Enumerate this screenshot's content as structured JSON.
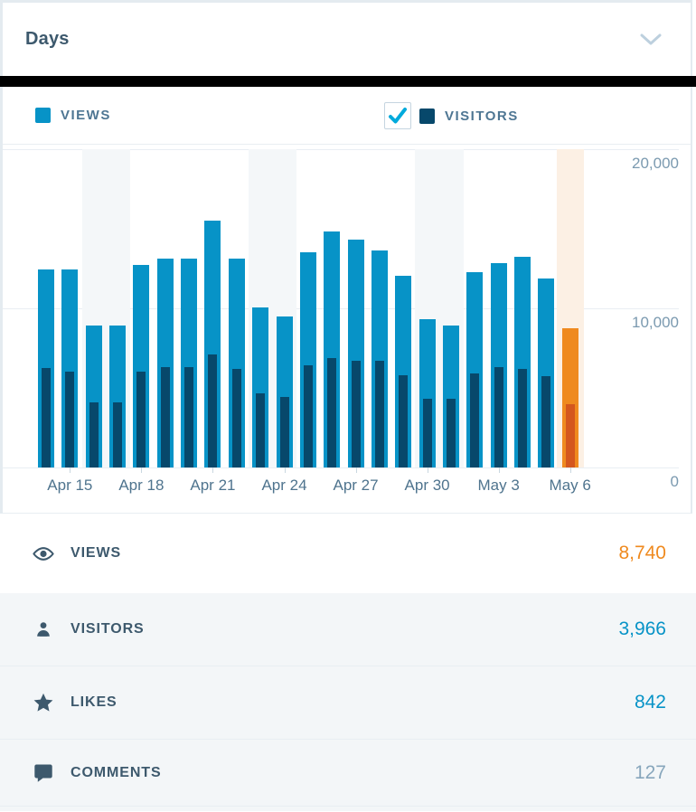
{
  "header": {
    "title": "Days"
  },
  "legend": {
    "views": {
      "label": "VIEWS",
      "color": "#0793c7"
    },
    "visitors": {
      "label": "VISITORS",
      "color": "#07486b",
      "checkbox_checked": true
    }
  },
  "chart_data": {
    "type": "bar",
    "title": "Days",
    "categories": [
      "Apr 14",
      "Apr 15",
      "Apr 16",
      "Apr 17",
      "Apr 18",
      "Apr 19",
      "Apr 20",
      "Apr 21",
      "Apr 22",
      "Apr 23",
      "Apr 24",
      "Apr 25",
      "Apr 26",
      "Apr 27",
      "Apr 28",
      "Apr 29",
      "Apr 30",
      "May 1",
      "May 2",
      "May 3",
      "May 4",
      "May 5",
      "May 6"
    ],
    "series": [
      {
        "name": "Views",
        "color": "#0793c7",
        "values": [
          12450,
          12450,
          8900,
          8900,
          12700,
          13100,
          13100,
          15500,
          13100,
          10050,
          9500,
          13550,
          14850,
          14300,
          13650,
          12050,
          9300,
          8900,
          12300,
          12850,
          13250,
          11900,
          8740
        ]
      },
      {
        "name": "Visitors",
        "color": "#07486b",
        "values": [
          6250,
          6000,
          4100,
          4100,
          6050,
          6280,
          6330,
          7130,
          6190,
          4670,
          4420,
          6410,
          6890,
          6700,
          6700,
          5800,
          4290,
          4290,
          5900,
          6280,
          6190,
          5750,
          3966
        ]
      }
    ],
    "selected_index": 22,
    "selected_category": "May 6",
    "selected_colors": {
      "views": "#ef8a1f",
      "visitors": "#d4571e"
    },
    "selected_band_color": "#fcf0e4",
    "weekend_shaded_indices": [
      2,
      3,
      9,
      10,
      16,
      17
    ],
    "weekend_band_color": "#f4f7f9",
    "x_tick_indices": [
      1,
      4,
      7,
      10,
      13,
      16,
      19,
      22
    ],
    "x_tick_labels": [
      "Apr 15",
      "Apr 18",
      "Apr 21",
      "Apr 24",
      "Apr 27",
      "Apr 30",
      "May 3",
      "May 6"
    ],
    "y_ticks": [
      "20,000",
      "10,000",
      "0"
    ],
    "y_tick_values": [
      20000,
      10000,
      0
    ],
    "ylim": [
      0,
      20000
    ],
    "grid": "horizontal",
    "legend_position": "top"
  },
  "summary": {
    "rows": [
      {
        "icon": "eye-icon",
        "label": "VIEWS",
        "value": "8,740",
        "value_color": "#ef8a1f",
        "background": "#ffffff"
      },
      {
        "icon": "person-icon",
        "label": "VISITORS",
        "value": "3,966",
        "value_color": "#0793c7",
        "background": "#f3f6f8"
      },
      {
        "icon": "star-icon",
        "label": "LIKES",
        "value": "842",
        "value_color": "#0793c7",
        "background": "#f3f6f8"
      },
      {
        "icon": "comment-icon",
        "label": "COMMENTS",
        "value": "127",
        "value_color": "#87a6bc",
        "background": "#f3f6f8"
      }
    ]
  }
}
